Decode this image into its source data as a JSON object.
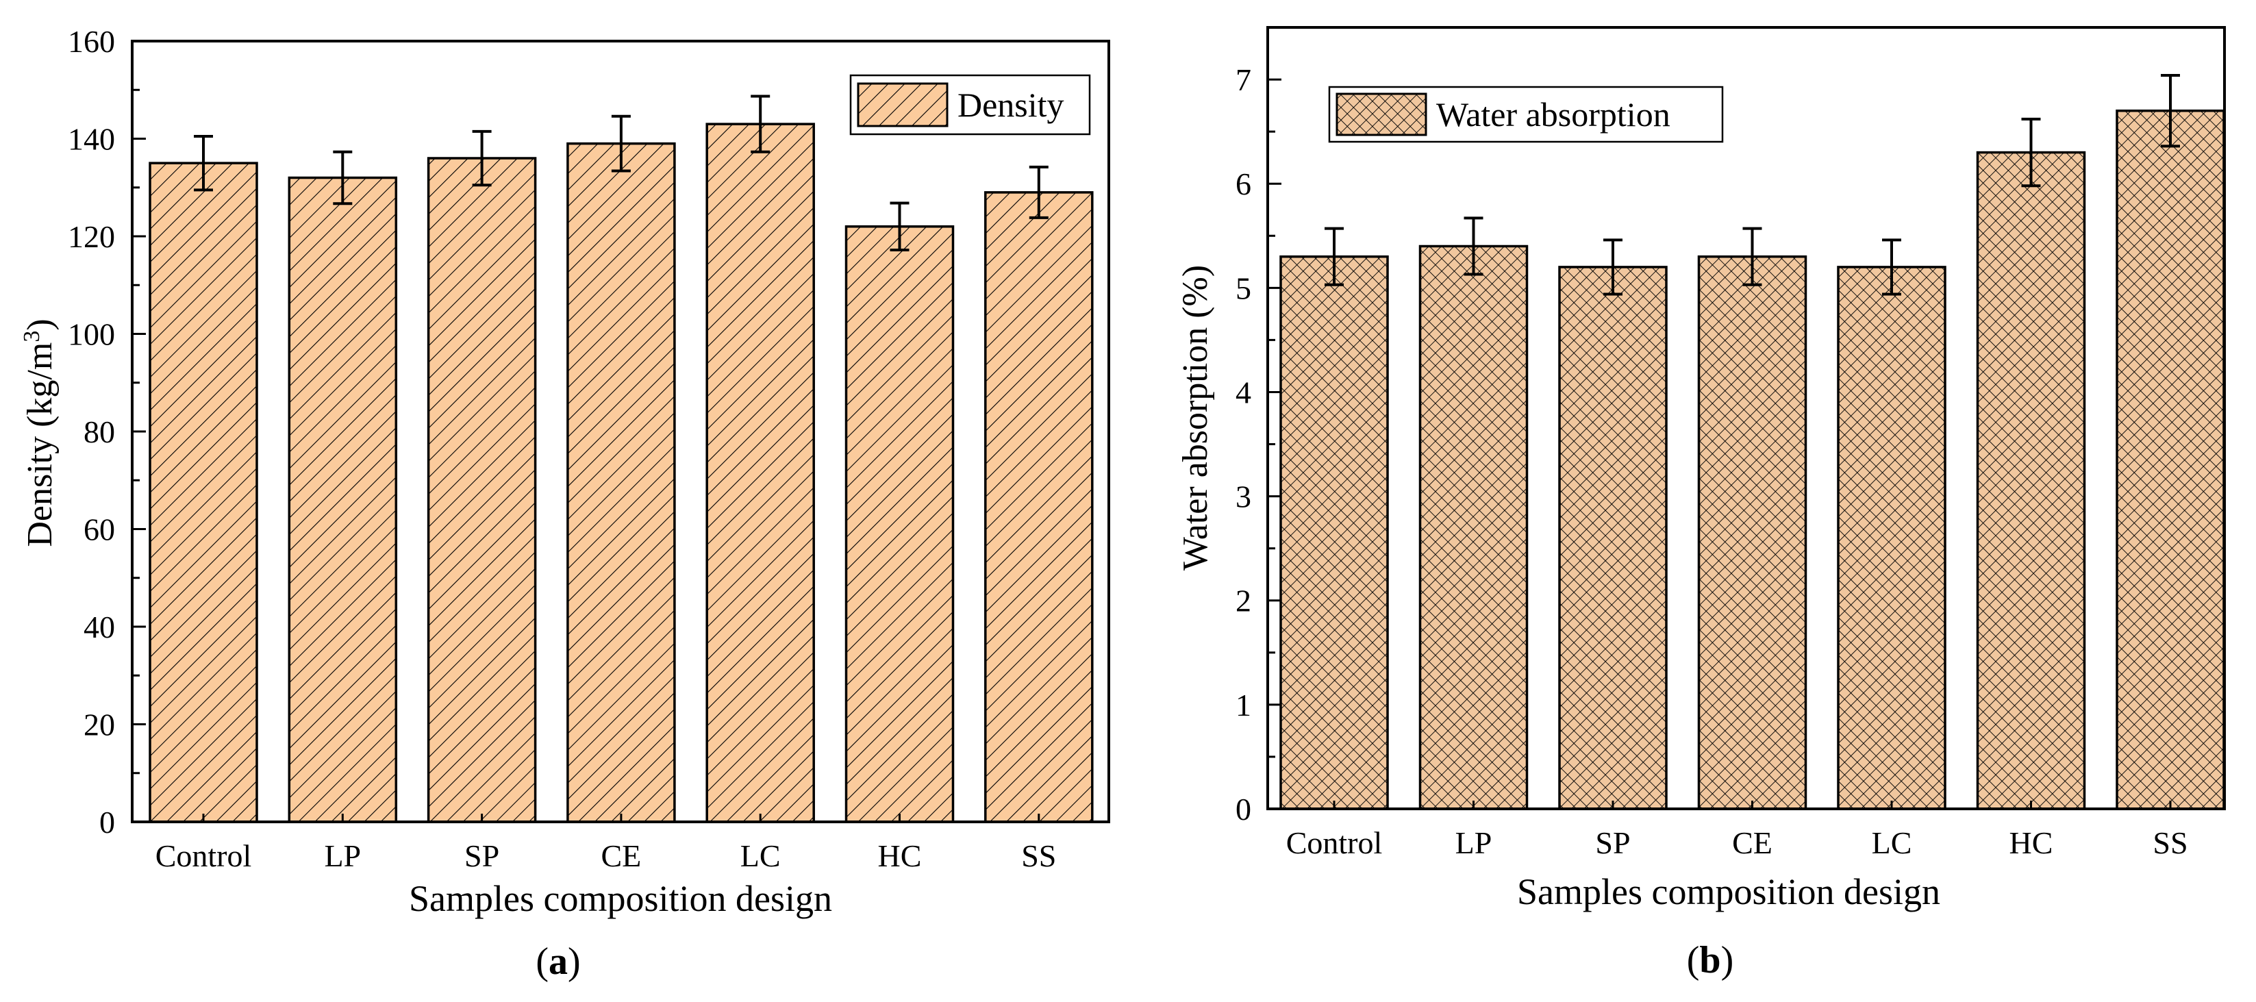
{
  "chart_data": [
    {
      "type": "bar",
      "panel_label": "a",
      "categories": [
        "Control",
        "LP",
        "SP",
        "CE",
        "LC",
        "HC",
        "SS"
      ],
      "series": [
        {
          "name": "Density",
          "values": [
            135,
            132,
            136,
            139,
            143,
            122,
            129
          ],
          "errors": [
            5.5,
            5.3,
            5.5,
            5.6,
            5.7,
            4.8,
            5.2
          ]
        }
      ],
      "xlabel": "Samples composition design",
      "ylabel": "Density (kg/m3)",
      "ylabel_main": "Density (kg/m",
      "ylabel_sup": "3",
      "ylabel_end": ")",
      "ylim": [
        0,
        160
      ],
      "yticks": [
        0,
        20,
        40,
        60,
        80,
        100,
        120,
        140,
        160
      ],
      "ytick_labels": [
        "0",
        "20",
        "40",
        "60",
        "80",
        "100",
        "120",
        "140",
        "160"
      ],
      "legend": "top-right",
      "grid": false,
      "fill_color": "#FBCB9C",
      "hatch": "diagonal"
    },
    {
      "type": "bar",
      "panel_label": "b",
      "categories": [
        "Control",
        "LP",
        "SP",
        "CE",
        "LC",
        "HC",
        "SS"
      ],
      "series": [
        {
          "name": "Water absorption",
          "values": [
            5.3,
            5.4,
            5.2,
            5.3,
            5.2,
            6.3,
            6.7
          ],
          "errors": [
            0.27,
            0.27,
            0.26,
            0.27,
            0.26,
            0.32,
            0.34
          ]
        }
      ],
      "xlabel": "Samples composition design",
      "ylabel": "Water absorption (%)",
      "ylim": [
        0,
        7.5
      ],
      "yticks": [
        0,
        1,
        2,
        3,
        4,
        5,
        6,
        7
      ],
      "ytick_labels": [
        "0",
        "1",
        "2",
        "3",
        "4",
        "5",
        "6",
        "7"
      ],
      "legend": "top-left",
      "grid": false,
      "fill_color": "#F1C79E",
      "hatch": "crosshatch"
    }
  ]
}
